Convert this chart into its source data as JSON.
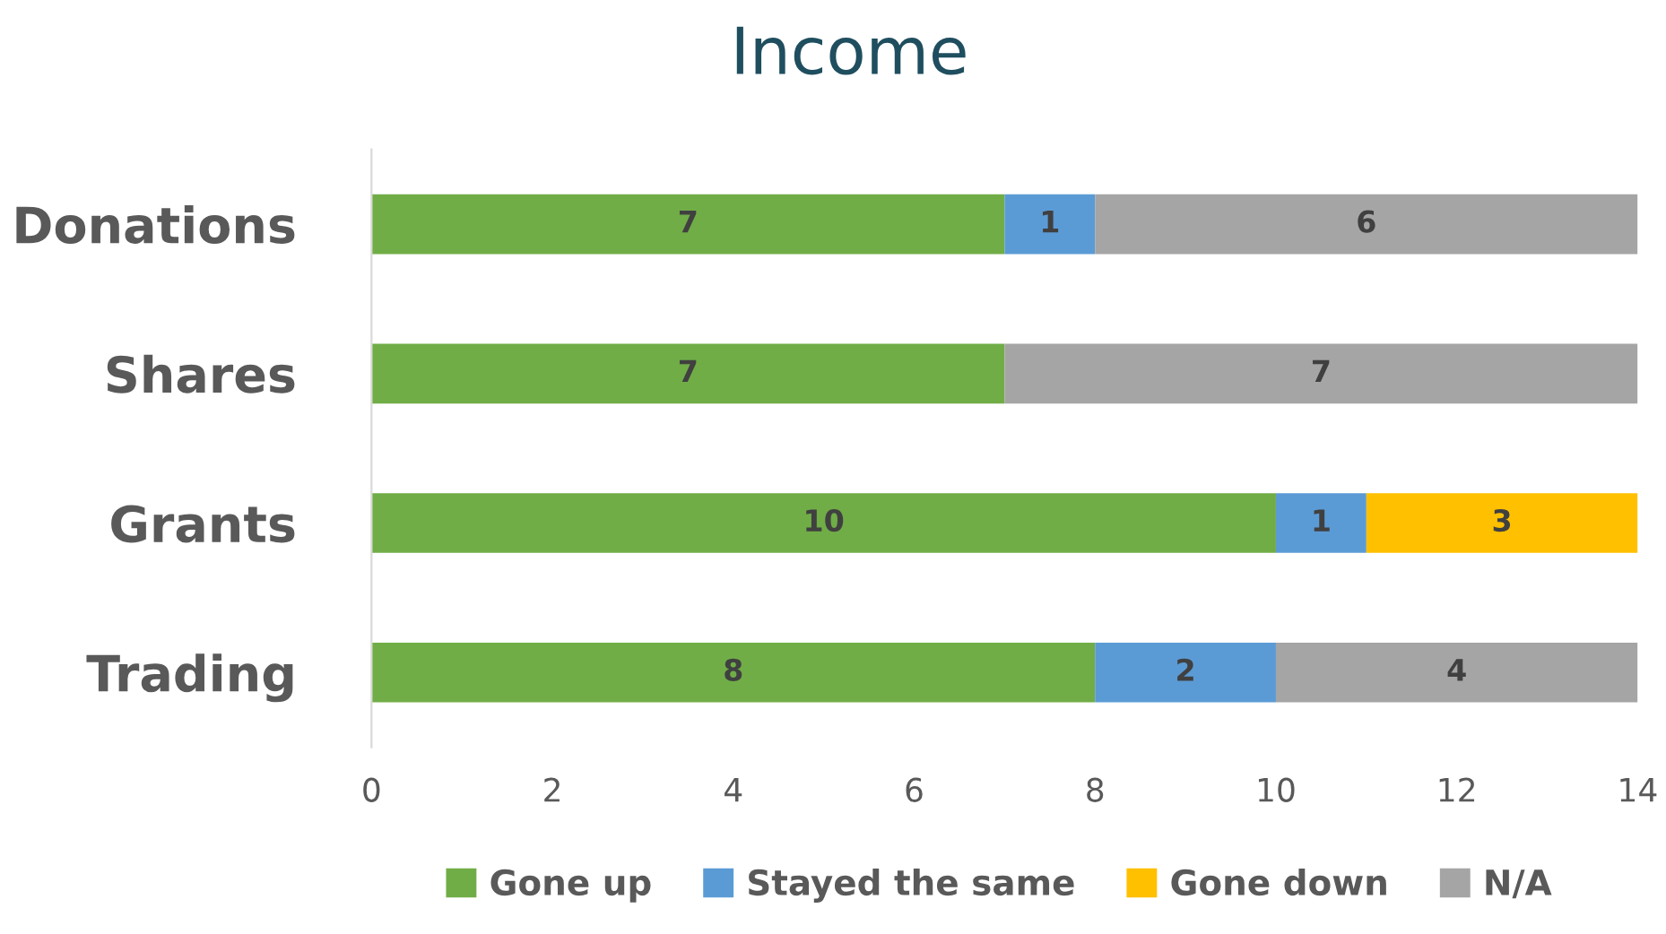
{
  "chart_data": {
    "type": "bar",
    "orientation": "horizontal",
    "stacked": true,
    "title": "Income",
    "categories": [
      "Donations",
      "Shares",
      "Grants",
      "Trading"
    ],
    "series": [
      {
        "name": "Gone up",
        "color": "#70ad47",
        "values": [
          7,
          7,
          10,
          8
        ]
      },
      {
        "name": "Stayed the same",
        "color": "#5b9bd5",
        "values": [
          1,
          null,
          1,
          2
        ]
      },
      {
        "name": "Gone down",
        "color": "#ffc000",
        "values": [
          null,
          null,
          3,
          null
        ]
      },
      {
        "name": "N/A",
        "color": "#a5a5a5",
        "values": [
          6,
          7,
          null,
          4
        ]
      }
    ],
    "xlim": [
      0,
      14
    ],
    "xticks": [
      0,
      2,
      4,
      6,
      8,
      10,
      12,
      14
    ],
    "grid": false,
    "legend": "bottom",
    "data_labels": true
  }
}
